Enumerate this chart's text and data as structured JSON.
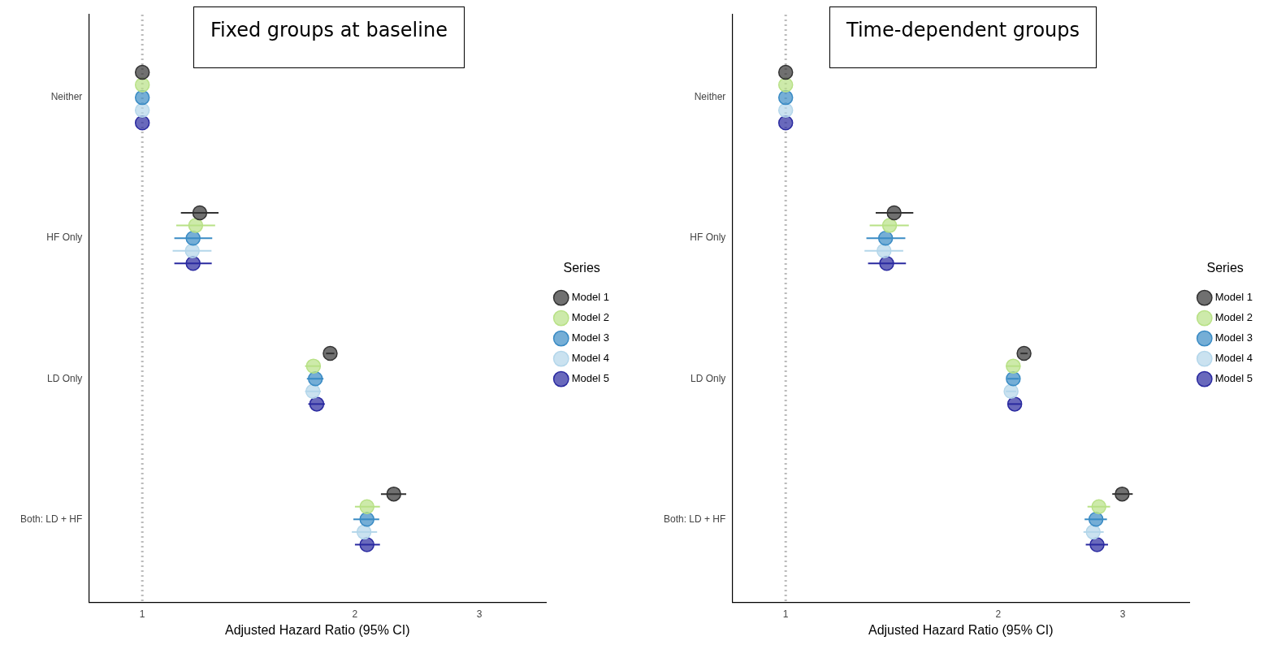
{
  "chart_data": [
    {
      "type": "scatter",
      "orientation": "horizontal",
      "title": "Fixed groups at baseline",
      "xlabel": "Adjusted Hazard Ratio (95% CI)",
      "categories": [
        "Neither",
        "HF Only",
        "LD Only",
        "Both: LD + HF"
      ],
      "series": [
        {
          "name": "Model 1",
          "color": "#333333",
          "values": [
            1,
            1.206,
            1.845,
            2.27
          ],
          "errors": [
            null,
            [
              1.134,
              1.282
            ],
            [
              1.82,
              1.87
            ],
            [
              2.177,
              2.364
            ]
          ]
        },
        {
          "name": "Model 2",
          "color": "#b8e186",
          "values": [
            1,
            1.19,
            1.747,
            2.08
          ],
          "errors": [
            null,
            [
              1.117,
              1.268
            ],
            [
              1.7,
              1.79
            ],
            [
              2.0,
              2.17
            ]
          ]
        },
        {
          "name": "Model 3",
          "color": "#3a8bc4",
          "values": [
            1,
            1.18,
            1.758,
            2.08
          ],
          "errors": [
            null,
            [
              1.11,
              1.256
            ],
            [
              1.71,
              1.805
            ],
            [
              1.99,
              2.165
            ]
          ]
        },
        {
          "name": "Model 4",
          "color": "#b3d6ea",
          "values": [
            1,
            1.177,
            1.744,
            2.06
          ],
          "errors": [
            null,
            [
              1.104,
              1.253
            ],
            [
              1.7,
              1.79
            ],
            [
              1.98,
              2.15
            ]
          ]
        },
        {
          "name": "Model 5",
          "color": "#2a2aa0",
          "values": [
            1,
            1.18,
            1.766,
            2.08
          ],
          "errors": [
            null,
            [
              1.11,
              1.254
            ],
            [
              1.718,
              1.813
            ],
            [
              2.0,
              2.17
            ]
          ]
        }
      ],
      "xlim": [
        0.84,
        3.73
      ],
      "xticks": [
        1,
        2,
        3
      ],
      "log": "x",
      "grid": false,
      "marker": "circle",
      "legend": "right",
      "legend_title": "Series",
      "ref_lines": [
        {
          "axis": "x",
          "value": 1,
          "color": "#bbbbbb",
          "line_style": "dotted"
        }
      ]
    },
    {
      "type": "scatter",
      "orientation": "horizontal",
      "title": "Time-dependent groups",
      "xlabel": "Adjusted Hazard Ratio (95% CI)",
      "categories": [
        "Neither",
        "HF Only",
        "LD Only",
        "Both: LD + HF"
      ],
      "series": [
        {
          "name": "Model 1",
          "color": "#333333",
          "values": [
            1,
            1.424,
            2.175,
            2.995
          ],
          "errors": [
            null,
            [
              1.341,
              1.516
            ],
            [
              2.15,
              2.2
            ],
            [
              2.9,
              3.1
            ]
          ]
        },
        {
          "name": "Model 2",
          "color": "#b8e186",
          "values": [
            1,
            1.403,
            2.1,
            2.776
          ],
          "errors": [
            null,
            [
              1.315,
              1.494
            ],
            [
              2.05,
              2.15
            ],
            [
              2.675,
              2.88
            ]
          ]
        },
        {
          "name": "Model 3",
          "color": "#3a8bc4",
          "values": [
            1,
            1.385,
            2.1,
            2.75
          ],
          "errors": [
            null,
            [
              1.301,
              1.477
            ],
            [
              2.06,
              2.14
            ],
            [
              2.65,
              2.85
            ]
          ]
        },
        {
          "name": "Model 4",
          "color": "#b3d6ea",
          "values": [
            1,
            1.378,
            2.085,
            2.725
          ],
          "errors": [
            null,
            [
              1.293,
              1.467
            ],
            [
              2.05,
              2.12
            ],
            [
              2.64,
              2.82
            ]
          ]
        },
        {
          "name": "Model 5",
          "color": "#2a2aa0",
          "values": [
            1,
            1.39,
            2.11,
            2.76
          ],
          "errors": [
            null,
            [
              1.308,
              1.48
            ],
            [
              2.06,
              2.16
            ],
            [
              2.66,
              2.86
            ]
          ]
        }
      ],
      "xlim": [
        0.84,
        3.73
      ],
      "xticks": [
        1,
        2,
        3
      ],
      "log": "x",
      "grid": false,
      "marker": "circle",
      "legend": "right",
      "legend_title": "Series",
      "ref_lines": [
        {
          "axis": "x",
          "value": 1,
          "color": "#bbbbbb",
          "line_style": "dotted"
        }
      ]
    }
  ]
}
